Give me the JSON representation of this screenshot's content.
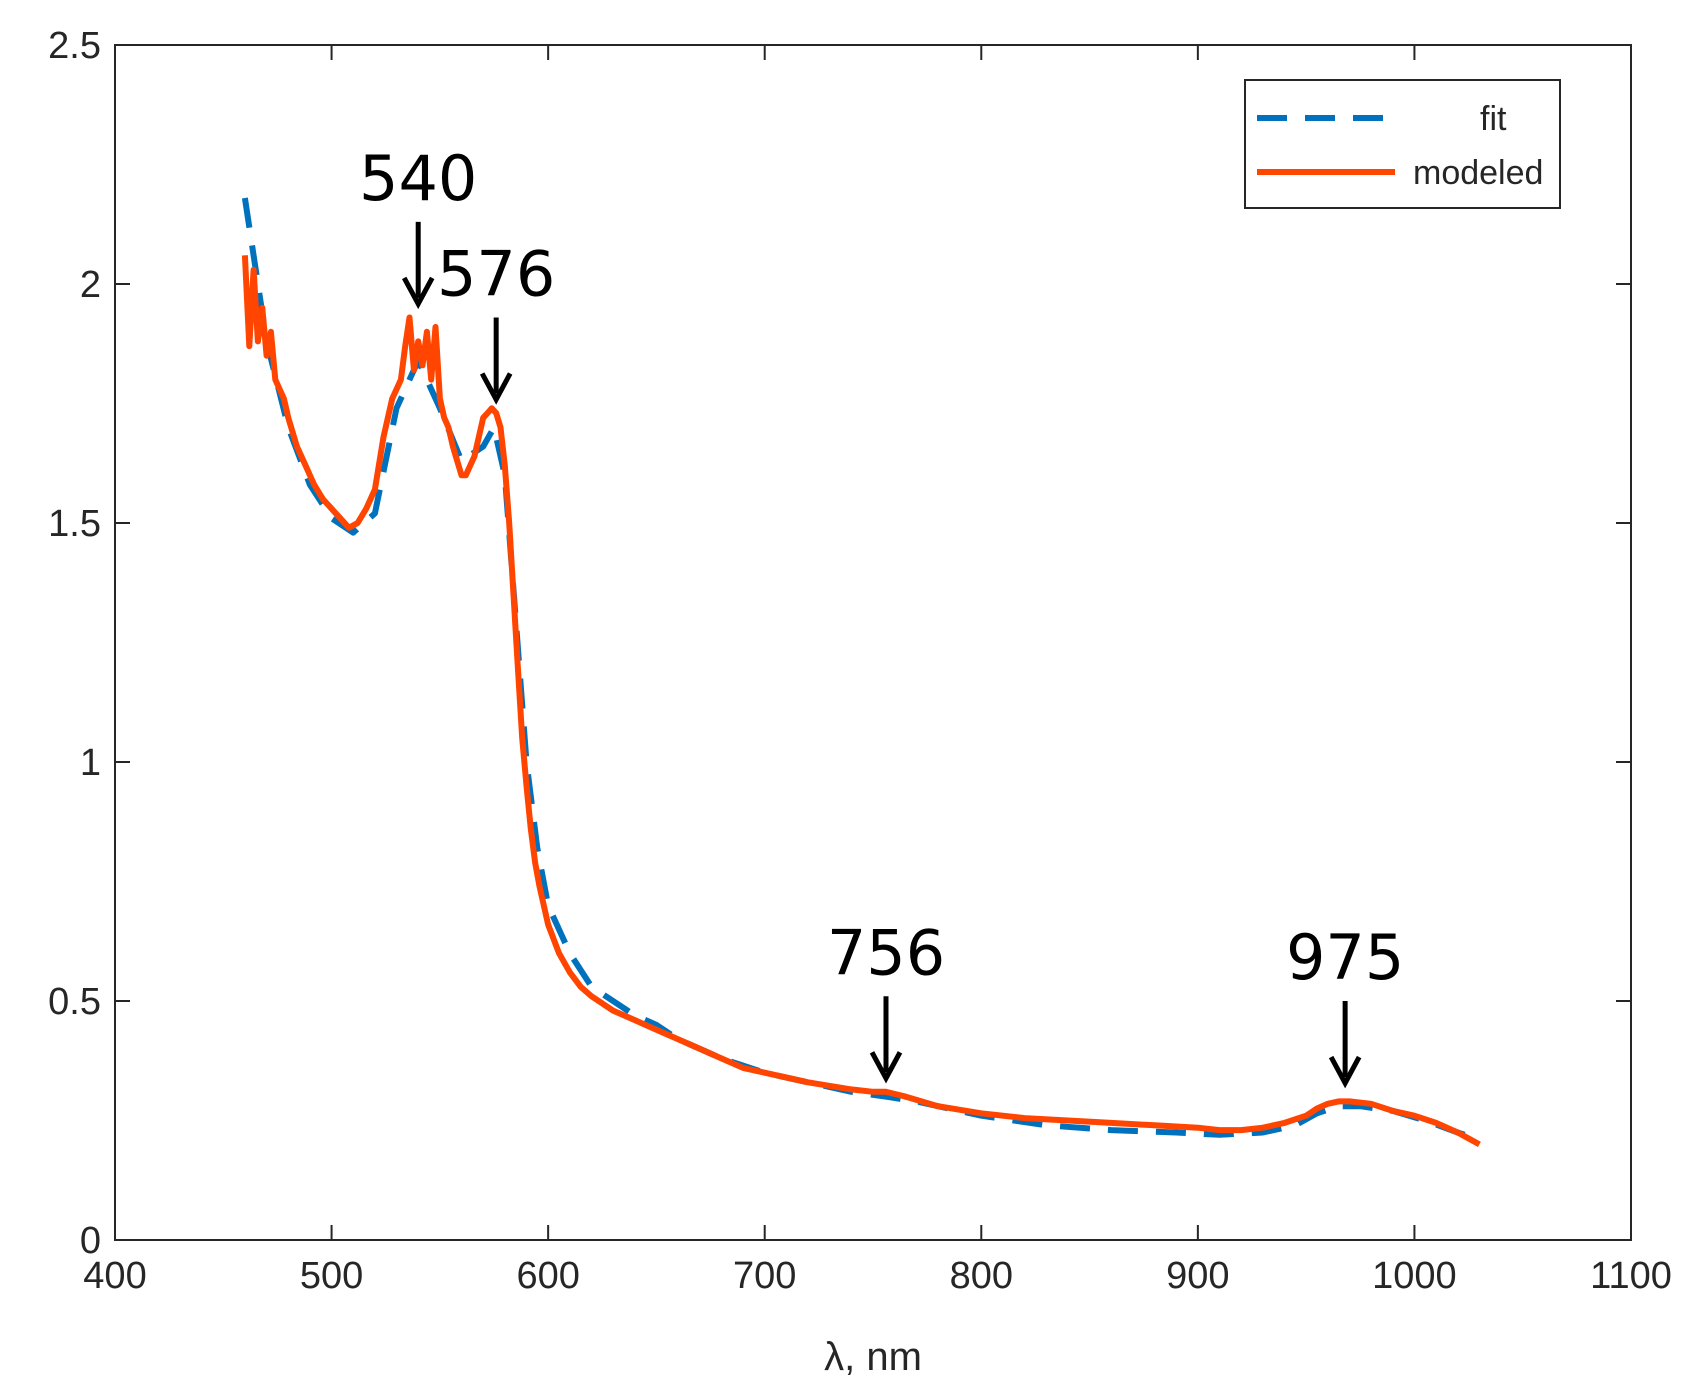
{
  "chart_data": {
    "type": "line",
    "title": "",
    "xlabel": "λ, nm",
    "ylabel": "",
    "xlim": [
      400,
      1100
    ],
    "ylim": [
      0,
      2.5
    ],
    "xticks": [
      400,
      500,
      600,
      700,
      800,
      900,
      1000,
      1100
    ],
    "yticks": [
      0,
      0.5,
      1,
      1.5,
      2,
      2.5
    ],
    "xtick_labels": [
      "400",
      "500",
      "600",
      "700",
      "800",
      "900",
      "1000",
      "1100"
    ],
    "ytick_labels": [
      "0",
      "0.5",
      "1",
      "1.5",
      "2",
      "2.5"
    ],
    "grid": false,
    "legend_position": "top-right",
    "series": [
      {
        "name": "fit",
        "style": "dashed",
        "color": "#0072BD",
        "x": [
          460,
          470,
          480,
          490,
          500,
          510,
          520,
          530,
          540,
          550,
          560,
          570,
          575,
          580,
          585,
          590,
          595,
          600,
          610,
          620,
          630,
          640,
          650,
          660,
          680,
          700,
          720,
          740,
          756,
          770,
          800,
          830,
          860,
          890,
          910,
          930,
          945,
          955,
          965,
          975,
          990,
          1005,
          1020,
          1030
        ],
        "y": [
          2.18,
          1.88,
          1.7,
          1.58,
          1.51,
          1.48,
          1.52,
          1.74,
          1.84,
          1.74,
          1.63,
          1.66,
          1.7,
          1.6,
          1.3,
          1.0,
          0.82,
          0.7,
          0.6,
          0.53,
          0.5,
          0.47,
          0.45,
          0.42,
          0.38,
          0.35,
          0.33,
          0.31,
          0.3,
          0.29,
          0.26,
          0.24,
          0.23,
          0.225,
          0.22,
          0.225,
          0.24,
          0.265,
          0.28,
          0.28,
          0.27,
          0.25,
          0.225,
          0.21
        ]
      },
      {
        "name": "modeled",
        "style": "solid",
        "color": "#FF4500",
        "x": [
          460,
          462,
          464,
          466,
          468,
          470,
          472,
          474,
          476,
          478,
          480,
          484,
          488,
          492,
          496,
          500,
          504,
          508,
          512,
          516,
          520,
          524,
          528,
          532,
          534,
          536,
          538,
          540,
          542,
          544,
          546,
          548,
          550,
          552,
          554,
          556,
          558,
          560,
          562,
          564,
          566,
          568,
          570,
          572,
          574,
          576,
          578,
          580,
          582,
          584,
          586,
          588,
          590,
          592,
          594,
          596,
          598,
          600,
          605,
          610,
          615,
          620,
          630,
          640,
          650,
          660,
          670,
          680,
          690,
          700,
          720,
          740,
          750,
          756,
          765,
          780,
          800,
          820,
          840,
          860,
          880,
          900,
          910,
          920,
          930,
          940,
          950,
          955,
          960,
          965,
          970,
          980,
          990,
          1000,
          1010,
          1020,
          1030
        ],
        "y": [
          2.06,
          1.87,
          2.03,
          1.88,
          1.95,
          1.85,
          1.9,
          1.8,
          1.78,
          1.76,
          1.72,
          1.66,
          1.62,
          1.58,
          1.55,
          1.53,
          1.51,
          1.49,
          1.5,
          1.53,
          1.57,
          1.68,
          1.76,
          1.8,
          1.87,
          1.93,
          1.82,
          1.88,
          1.83,
          1.9,
          1.8,
          1.91,
          1.76,
          1.72,
          1.7,
          1.66,
          1.63,
          1.6,
          1.6,
          1.62,
          1.64,
          1.68,
          1.72,
          1.73,
          1.74,
          1.73,
          1.7,
          1.62,
          1.5,
          1.35,
          1.2,
          1.05,
          0.95,
          0.86,
          0.79,
          0.74,
          0.7,
          0.66,
          0.6,
          0.56,
          0.53,
          0.51,
          0.48,
          0.46,
          0.44,
          0.42,
          0.4,
          0.38,
          0.36,
          0.35,
          0.33,
          0.315,
          0.31,
          0.31,
          0.3,
          0.28,
          0.265,
          0.255,
          0.25,
          0.245,
          0.24,
          0.235,
          0.23,
          0.23,
          0.235,
          0.245,
          0.26,
          0.275,
          0.285,
          0.29,
          0.29,
          0.285,
          0.27,
          0.26,
          0.245,
          0.225,
          0.2
        ]
      }
    ],
    "annotations": [
      {
        "text": "540",
        "x": 540,
        "y": 1.95
      },
      {
        "text": "576",
        "x": 576,
        "y": 1.75
      },
      {
        "text": "756",
        "x": 756,
        "y": 0.33
      },
      {
        "text": "975",
        "x": 968,
        "y": 0.32
      }
    ]
  },
  "legend": {
    "items": [
      {
        "label": "fit",
        "color": "#0072BD",
        "style": "dashed"
      },
      {
        "label": "modeled",
        "color": "#FF4500",
        "style": "solid"
      }
    ]
  },
  "colors": {
    "axis": "#262626",
    "background": "#ffffff",
    "annotation": "#000000"
  }
}
